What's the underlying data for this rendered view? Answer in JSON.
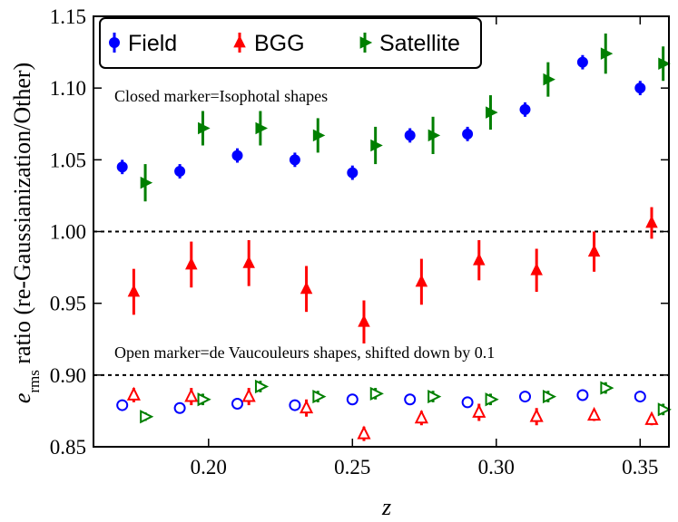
{
  "chart_data": {
    "type": "scatter",
    "xlabel": "z",
    "ylabel_main": "e",
    "ylabel_sub": "rms",
    "ylabel_rest": " ratio (re-Gaussianization/Other)",
    "xlim": [
      0.16,
      0.36
    ],
    "ylim": [
      0.85,
      1.15
    ],
    "xticks": [
      0.2,
      0.25,
      0.3,
      0.35
    ],
    "xtick_labels": [
      "0.20",
      "0.25",
      "0.30",
      "0.35"
    ],
    "yticks": [
      0.85,
      0.9,
      0.95,
      1.0,
      1.05,
      1.1,
      1.15
    ],
    "ytick_labels": [
      "0.85",
      "0.90",
      "0.95",
      "1.00",
      "1.05",
      "1.10",
      "1.15"
    ],
    "reference_lines": [
      1.0,
      0.9
    ],
    "annotations": [
      "Closed marker=Isophotal shapes",
      "Open marker=de Vaucouleurs shapes, shifted down by 0.1"
    ],
    "legend": {
      "position": "top-left",
      "entries": [
        {
          "label": "Field",
          "marker": "circle",
          "color": "#0000ff"
        },
        {
          "label": "BGG",
          "marker": "triangle-up",
          "color": "#ff0000"
        },
        {
          "label": "Satellite",
          "marker": "triangle-right",
          "color": "#007f00"
        }
      ]
    },
    "series": [
      {
        "name": "Field",
        "style": "closed",
        "marker": "circle",
        "color": "#0000ff",
        "x": [
          0.17,
          0.19,
          0.21,
          0.23,
          0.25,
          0.27,
          0.29,
          0.31,
          0.33,
          0.35
        ],
        "y": [
          1.045,
          1.042,
          1.053,
          1.05,
          1.041,
          1.067,
          1.068,
          1.085,
          1.118,
          1.1
        ],
        "err": [
          0.005,
          0.005,
          0.005,
          0.005,
          0.005,
          0.005,
          0.005,
          0.005,
          0.005,
          0.005
        ]
      },
      {
        "name": "BGG",
        "style": "closed",
        "marker": "triangle-up",
        "color": "#ff0000",
        "x": [
          0.174,
          0.194,
          0.214,
          0.234,
          0.254,
          0.274,
          0.294,
          0.314,
          0.334,
          0.354
        ],
        "y": [
          0.958,
          0.977,
          0.978,
          0.96,
          0.937,
          0.965,
          0.98,
          0.973,
          0.986,
          1.006
        ],
        "err": [
          0.016,
          0.016,
          0.016,
          0.016,
          0.015,
          0.016,
          0.014,
          0.015,
          0.014,
          0.011
        ]
      },
      {
        "name": "Satellite",
        "style": "closed",
        "marker": "triangle-right",
        "color": "#007f00",
        "x": [
          0.178,
          0.198,
          0.218,
          0.238,
          0.258,
          0.278,
          0.298,
          0.318,
          0.338,
          0.358
        ],
        "y": [
          1.034,
          1.072,
          1.072,
          1.067,
          1.06,
          1.067,
          1.083,
          1.106,
          1.124,
          1.117
        ],
        "err": [
          0.013,
          0.012,
          0.012,
          0.012,
          0.013,
          0.013,
          0.012,
          0.012,
          0.014,
          0.012
        ]
      },
      {
        "name": "Field",
        "style": "open",
        "marker": "circle",
        "color": "#0000ff",
        "x": [
          0.17,
          0.19,
          0.21,
          0.23,
          0.25,
          0.27,
          0.29,
          0.31,
          0.33,
          0.35
        ],
        "y": [
          0.879,
          0.877,
          0.88,
          0.879,
          0.883,
          0.883,
          0.881,
          0.885,
          0.886,
          0.885
        ],
        "err": [
          0,
          0,
          0,
          0,
          0,
          0,
          0,
          0,
          0,
          0
        ]
      },
      {
        "name": "BGG",
        "style": "open",
        "marker": "triangle-up",
        "color": "#ff0000",
        "x": [
          0.174,
          0.194,
          0.214,
          0.234,
          0.254,
          0.274,
          0.294,
          0.314,
          0.334,
          0.354
        ],
        "y": [
          0.886,
          0.885,
          0.885,
          0.877,
          0.859,
          0.87,
          0.874,
          0.871,
          0.872,
          0.869
        ],
        "err": [
          0.005,
          0.006,
          0.006,
          0.006,
          0.005,
          0.005,
          0.006,
          0.006,
          0.004,
          0.004
        ]
      },
      {
        "name": "Satellite",
        "style": "open",
        "marker": "triangle-right",
        "color": "#007f00",
        "x": [
          0.178,
          0.198,
          0.218,
          0.238,
          0.258,
          0.278,
          0.298,
          0.318,
          0.338,
          0.358
        ],
        "y": [
          0.871,
          0.883,
          0.892,
          0.885,
          0.887,
          0.885,
          0.883,
          0.885,
          0.891,
          0.876
        ],
        "err": [
          0.003,
          0.004,
          0.004,
          0.004,
          0.004,
          0.004,
          0.004,
          0.004,
          0.004,
          0.004
        ]
      }
    ]
  }
}
